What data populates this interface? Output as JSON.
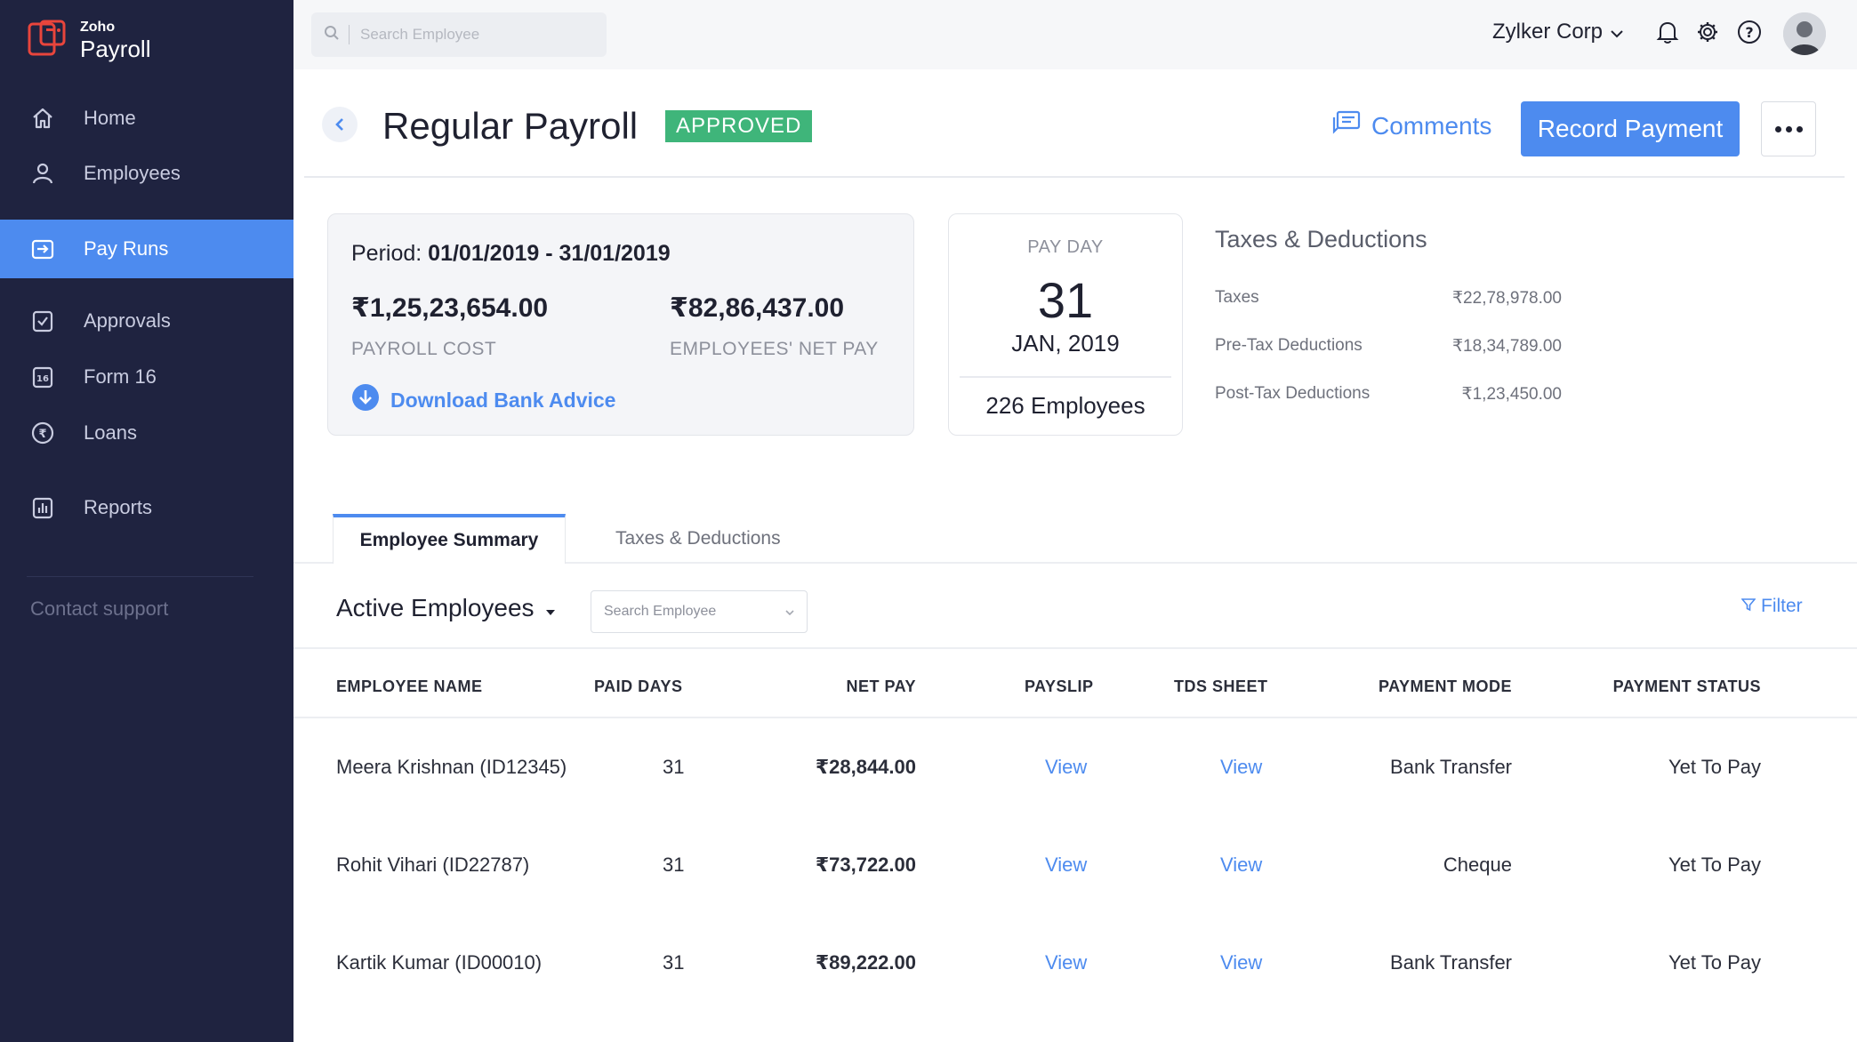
{
  "brand": {
    "small": "Zoho",
    "big": "Payroll"
  },
  "sidebar": {
    "items": [
      {
        "label": "Home",
        "icon": "home-icon"
      },
      {
        "label": "Employees",
        "icon": "person-icon"
      },
      {
        "label": "Pay Runs",
        "icon": "payrun-icon",
        "active": true
      },
      {
        "label": "Approvals",
        "icon": "approval-check-icon"
      },
      {
        "label": "Form 16",
        "icon": "form16-icon"
      },
      {
        "label": "Loans",
        "icon": "rupee-coin-icon"
      },
      {
        "label": "Reports",
        "icon": "bar-chart-icon"
      }
    ],
    "contact": "Contact support"
  },
  "topbar": {
    "search_placeholder": "Search Employee",
    "org": "Zylker Corp"
  },
  "header": {
    "title": "Regular Payroll",
    "status": "APPROVED",
    "comments": "Comments",
    "record_payment": "Record Payment"
  },
  "summary": {
    "period_label": "Period:",
    "period_value": "01/01/2019 - 31/01/2019",
    "payroll_cost": "₹1,25,23,654.00",
    "payroll_cost_label": "PAYROLL COST",
    "net_pay": "₹82,86,437.00",
    "net_pay_label": "EMPLOYEES' NET PAY",
    "download": "Download Bank Advice"
  },
  "payday": {
    "label": "PAY DAY",
    "day": "31",
    "month": "JAN, 2019",
    "employees": "226 Employees"
  },
  "taxes": {
    "title": "Taxes & Deductions",
    "rows": [
      {
        "label": "Taxes",
        "value": "₹22,78,978.00"
      },
      {
        "label": "Pre-Tax Deductions",
        "value": "₹18,34,789.00"
      },
      {
        "label": "Post-Tax Deductions",
        "value": "₹1,23,450.00"
      }
    ]
  },
  "tabs": [
    "Employee Summary",
    "Taxes & Deductions"
  ],
  "filters": {
    "active_employees": "Active Employees",
    "search_placeholder": "Search Employee",
    "filter": "Filter"
  },
  "table": {
    "headers": [
      "EMPLOYEE NAME",
      "PAID DAYS",
      "NET PAY",
      "PAYSLIP",
      "TDS SHEET",
      "PAYMENT MODE",
      "PAYMENT STATUS"
    ],
    "rows": [
      {
        "name": "Meera Krishnan (ID12345)",
        "days": "31",
        "net": "₹28,844.00",
        "payslip": "View",
        "tds": "View",
        "mode": "Bank Transfer",
        "status": "Yet To Pay"
      },
      {
        "name": "Rohit Vihari (ID22787)",
        "days": "31",
        "net": "₹73,722.00",
        "payslip": "View",
        "tds": "View",
        "mode": "Cheque",
        "status": "Yet To Pay"
      },
      {
        "name": "Kartik Kumar (ID00010)",
        "days": "31",
        "net": "₹89,222.00",
        "payslip": "View",
        "tds": "View",
        "mode": "Bank Transfer",
        "status": "Yet To Pay"
      }
    ]
  },
  "colors": {
    "sidebar": "#1f2340",
    "accent": "#4d8bef",
    "approved": "#3fb57a"
  }
}
